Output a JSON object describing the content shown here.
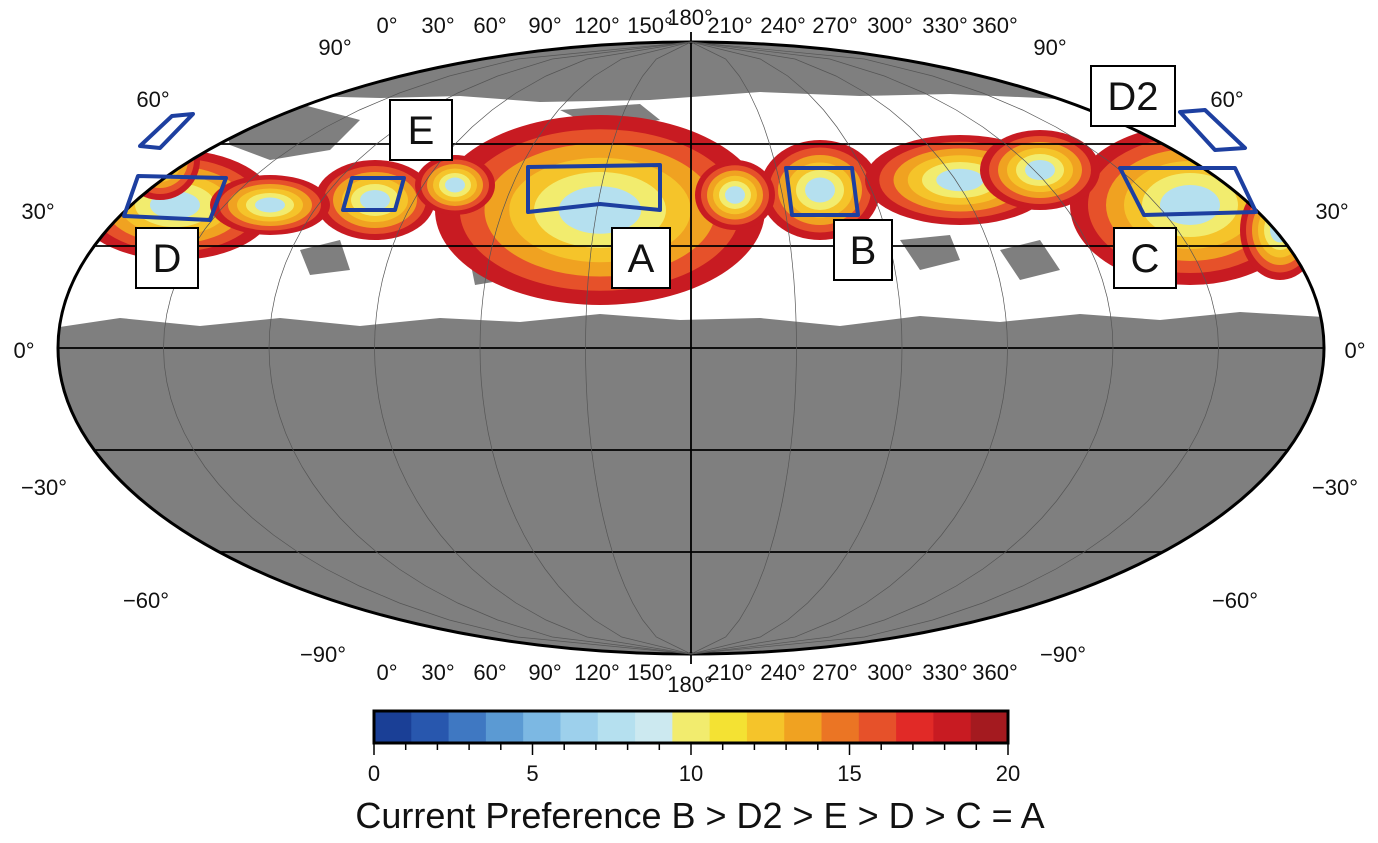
{
  "map": {
    "top_longitude_labels": [
      "0°",
      "30°",
      "60°",
      "90°",
      "120°",
      "150°",
      "180°",
      "210°",
      "240°",
      "270°",
      "300°",
      "330°",
      "360°"
    ],
    "bottom_longitude_labels": [
      "0°",
      "30°",
      "60°",
      "90°",
      "120°",
      "150°",
      "180°",
      "210°",
      "240°",
      "270°",
      "300°",
      "330°",
      "360°"
    ],
    "latitude_labels": [
      "90°",
      "60°",
      "30°",
      "0°",
      "−30°",
      "−60°",
      "−90°"
    ],
    "latitudes": [
      90,
      60,
      30,
      0,
      -30,
      -60,
      -90
    ],
    "colors": {
      "land": "#7f7f7f",
      "grid": "#000000",
      "box": "#1d3fa0"
    }
  },
  "sites": [
    {
      "id": "A",
      "label": "A"
    },
    {
      "id": "B",
      "label": "B"
    },
    {
      "id": "C",
      "label": "C"
    },
    {
      "id": "D",
      "label": "D"
    },
    {
      "id": "D2",
      "label": "D2"
    },
    {
      "id": "E",
      "label": "E"
    }
  ],
  "colorbar": {
    "min": 0,
    "max": 20,
    "tick_labels": [
      "0",
      "5",
      "10",
      "15",
      "20"
    ],
    "colors": [
      "#1a3f96",
      "#2857ae",
      "#3f78c2",
      "#5b9ad3",
      "#7cb8e3",
      "#9dd0ec",
      "#b5e0ef",
      "#cce9f0",
      "#f2ec6e",
      "#f4e233",
      "#f5c42a",
      "#f0a221",
      "#eb7524",
      "#e6512a",
      "#e12a27",
      "#c81b22",
      "#a41a1f"
    ]
  },
  "caption": "Current Preference B > D2 > E > D > C = A"
}
